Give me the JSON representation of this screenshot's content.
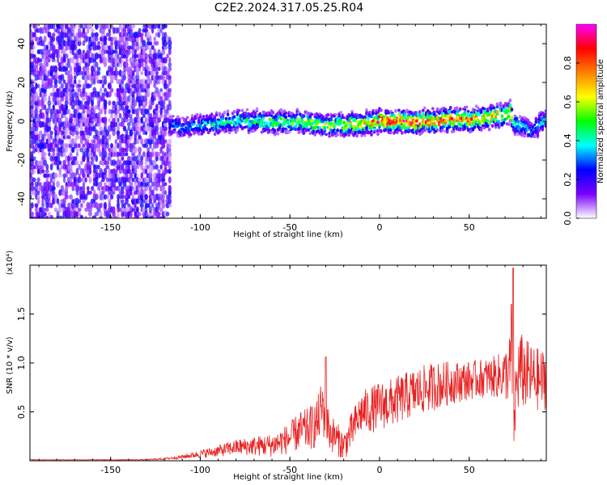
{
  "title": "C2E2.2024.317.05.25.R04",
  "chart_data": [
    {
      "type": "heatmap",
      "title": "C2E2.2024.317.05.25.R04",
      "xlabel": "Height of straight line (km)",
      "ylabel": "Frequency (Hz)",
      "xlim": [
        -195,
        93
      ],
      "ylim": [
        -50,
        50
      ],
      "xticks": [
        -150,
        -100,
        -50,
        0,
        50
      ],
      "xtick_labels": [
        "-150",
        "-100",
        "-50",
        "0",
        "50"
      ],
      "yticks": [
        -40,
        -20,
        0,
        20,
        40
      ],
      "ytick_labels": [
        "-40",
        "-20",
        "0",
        "20",
        "40"
      ],
      "colorbar": {
        "label": "Normalized spectral amplitude",
        "range": [
          0,
          1
        ],
        "ticks": [
          0.0,
          0.2,
          0.4,
          0.6,
          0.8
        ],
        "tick_labels": [
          "0.0",
          "0.2",
          "0.4",
          "0.6",
          "0.8"
        ],
        "colors": [
          "#ffffff",
          "#7b00ff",
          "#0000ff",
          "#00ffff",
          "#00ff00",
          "#ffff00",
          "#ff8000",
          "#ff0000",
          "#ff00ff"
        ]
      },
      "noise_region": {
        "x": [
          -195,
          -117
        ],
        "level": 0.15
      },
      "ridge": {
        "x": [
          -117,
          -110,
          -100,
          -90,
          -80,
          -70,
          -60,
          -50,
          -40,
          -30,
          -20,
          -10,
          0,
          10,
          20,
          30,
          40,
          50,
          60,
          65,
          70,
          73,
          75,
          80,
          85,
          90,
          93
        ],
        "freq": [
          -2,
          -3,
          -2,
          -1,
          0,
          0,
          -1,
          0,
          -1,
          -2,
          -2,
          -1,
          0,
          0,
          0,
          0,
          1,
          1,
          2,
          3,
          3,
          5,
          -1,
          -3,
          -5,
          -1,
          2
        ],
        "amplitude": [
          0.3,
          0.3,
          0.35,
          0.4,
          0.4,
          0.45,
          0.5,
          0.5,
          0.55,
          0.55,
          0.6,
          0.7,
          0.85,
          0.85,
          0.85,
          0.8,
          0.8,
          0.75,
          0.7,
          0.7,
          0.65,
          0.55,
          0.45,
          0.35,
          0.3,
          0.35,
          0.4
        ]
      },
      "spread_hz": 6
    },
    {
      "type": "line",
      "xlabel": "Height of straight line (km)",
      "ylabel": "SNR (10 * v/v)",
      "multiplier": "(x10⁴)",
      "xlim": [
        -195,
        93
      ],
      "ylim": [
        0,
        2.0
      ],
      "xticks": [
        -150,
        -100,
        -50,
        0,
        50
      ],
      "xtick_labels": [
        "-150",
        "-100",
        "-50",
        "0",
        "50"
      ],
      "yticks": [
        0.5,
        1.0,
        1.5
      ],
      "ytick_labels": [
        "0.5",
        "1.0",
        "1.5"
      ],
      "color": "#e82020",
      "series": [
        {
          "x": [
            -195,
            -160,
            -130,
            -120,
            -110,
            -100,
            -90,
            -80,
            -70,
            -60,
            -50,
            -45,
            -40,
            -35,
            -32,
            -30,
            -28,
            -25,
            -20,
            -15,
            -10,
            -5,
            0,
            5,
            10,
            20,
            30,
            40,
            50,
            60,
            65,
            70,
            72,
            74,
            75,
            76,
            78,
            80,
            85,
            90,
            93
          ],
          "values": [
            0.01,
            0.01,
            0.01,
            0.02,
            0.04,
            0.07,
            0.1,
            0.14,
            0.15,
            0.16,
            0.23,
            0.3,
            0.32,
            0.38,
            0.55,
            0.48,
            0.3,
            0.25,
            0.15,
            0.32,
            0.5,
            0.52,
            0.56,
            0.58,
            0.62,
            0.7,
            0.76,
            0.8,
            0.82,
            0.85,
            0.86,
            0.88,
            0.92,
            0.95,
            0.35,
            0.7,
            0.95,
            0.9,
            0.85,
            0.82,
            0.85
          ],
          "noise": [
            0.003,
            0.003,
            0.004,
            0.01,
            0.02,
            0.04,
            0.06,
            0.08,
            0.1,
            0.12,
            0.16,
            0.2,
            0.22,
            0.25,
            0.3,
            0.3,
            0.2,
            0.18,
            0.15,
            0.2,
            0.22,
            0.24,
            0.25,
            0.25,
            0.25,
            0.25,
            0.25,
            0.22,
            0.2,
            0.2,
            0.22,
            0.26,
            0.35,
            0.4,
            0.3,
            0.4,
            0.4,
            0.38,
            0.34,
            0.32,
            0.32
          ]
        }
      ],
      "peaks": [
        {
          "x": -30,
          "y": 1.06
        },
        {
          "x": 74.5,
          "y": 1.97
        },
        {
          "x": 73.5,
          "y": 1.6
        }
      ]
    }
  ]
}
